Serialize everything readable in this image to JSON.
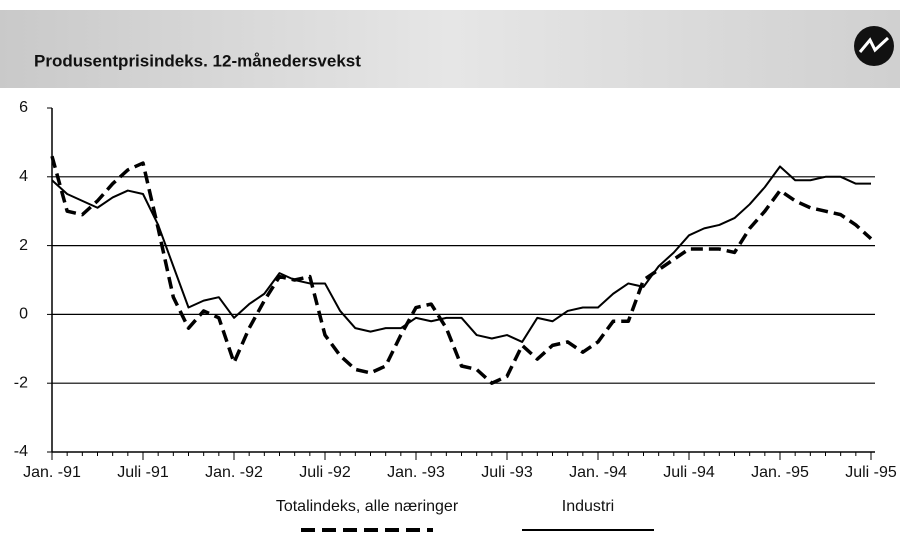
{
  "chart_data": {
    "type": "line",
    "title": "Produsentprisindeks. 12-månedersvekst",
    "categories": [
      "Jan. -91",
      null,
      null,
      null,
      null,
      null,
      "Juli -91",
      null,
      null,
      null,
      null,
      null,
      "Jan. -92",
      null,
      null,
      null,
      null,
      null,
      "Juli -92",
      null,
      null,
      null,
      null,
      null,
      "Jan. -93",
      null,
      null,
      null,
      null,
      null,
      "Juli -93",
      null,
      null,
      null,
      null,
      null,
      "Jan. -94",
      null,
      null,
      null,
      null,
      null,
      "Juli -94",
      null,
      null,
      null,
      null,
      null,
      "Jan. -95",
      null,
      null,
      null,
      null,
      null,
      "Juli -95"
    ],
    "series": [
      {
        "name": "Totalindeks, alle næringer",
        "color": "#000000",
        "dash": true,
        "values": [
          4.6,
          3.0,
          2.9,
          3.3,
          3.8,
          4.2,
          4.4,
          2.5,
          0.5,
          -0.4,
          0.1,
          -0.1,
          -1.4,
          -0.4,
          0.4,
          1.1,
          1.0,
          1.1,
          -0.6,
          -1.2,
          -1.6,
          -1.7,
          -1.5,
          -0.6,
          0.2,
          0.3,
          -0.4,
          -1.5,
          -1.6,
          -2.0,
          -1.8,
          -0.9,
          -1.3,
          -0.9,
          -0.8,
          -1.1,
          -0.8,
          -0.2,
          -0.2,
          1.0,
          1.3,
          1.6,
          1.9,
          1.9,
          1.9,
          1.8,
          2.5,
          3.0,
          3.6,
          3.3,
          3.1,
          3.0,
          2.9,
          2.6,
          2.2
        ]
      },
      {
        "name": "Industri",
        "color": "#000000",
        "dash": false,
        "values": [
          3.9,
          3.5,
          3.3,
          3.1,
          3.4,
          3.6,
          3.5,
          2.6,
          1.4,
          0.2,
          0.4,
          0.5,
          -0.1,
          0.3,
          0.6,
          1.2,
          1.0,
          0.9,
          0.9,
          0.1,
          -0.4,
          -0.5,
          -0.4,
          -0.4,
          -0.1,
          -0.2,
          -0.1,
          -0.1,
          -0.6,
          -0.7,
          -0.6,
          -0.8,
          -0.1,
          -0.2,
          0.1,
          0.2,
          0.2,
          0.6,
          0.9,
          0.8,
          1.4,
          1.8,
          2.3,
          2.5,
          2.6,
          2.8,
          3.2,
          3.7,
          4.3,
          3.9,
          3.9,
          4.0,
          4.0,
          3.8,
          3.8
        ]
      }
    ],
    "ylim": [
      -4,
      6
    ],
    "yticks": [
      -4,
      -2,
      0,
      2,
      4,
      6
    ],
    "grid": true
  }
}
